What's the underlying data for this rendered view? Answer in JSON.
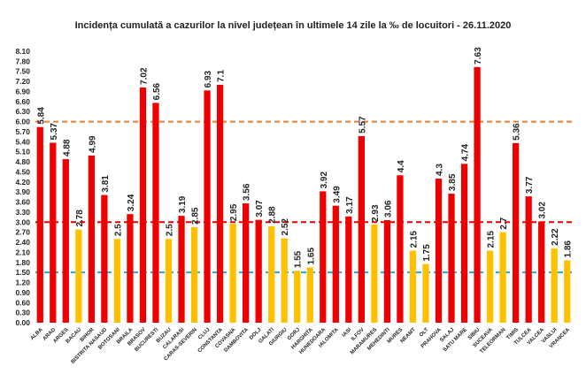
{
  "chart_data": {
    "type": "bar",
    "title": "Incidența cumulată a cazurilor la nivel județean în ultimele 14 zile la ‰ de locuitori - 26.11.2020",
    "xlabel": "",
    "ylabel": "",
    "ylim": [
      0,
      8.1
    ],
    "ytick_step": 0.3,
    "grid": false,
    "legend": "none",
    "categories": [
      "ALBA",
      "ARAD",
      "ARGES",
      "BACAU",
      "BIHOR",
      "BISTRITA NASAUD",
      "BOTOSANI",
      "BRAILA",
      "BRASOV",
      "BUCURESTI",
      "BUZAU",
      "CALARASI",
      "CARAS-SEVERIN",
      "CLUJ",
      "CONSTANTA",
      "COVASNA",
      "DAMBOVITA",
      "DOLJ",
      "GALATI",
      "GIURGIU",
      "GORJ",
      "HARGHITA",
      "HUNEDOARA",
      "IALOMITA",
      "IASI",
      "ILFOV",
      "MARAMURES",
      "MEHEDINTI",
      "MURES",
      "NEAMT",
      "OLT",
      "PRAHOVA",
      "SALAJ",
      "SATU MARE",
      "SIBIU",
      "SUCEAVA",
      "TELEORMAN",
      "TIMIS",
      "TULCEA",
      "VALCEA",
      "VASLUI",
      "VRANCEA"
    ],
    "values": [
      5.84,
      5.37,
      4.88,
      2.78,
      4.99,
      3.81,
      2.5,
      3.24,
      7.02,
      6.56,
      2.5,
      3.19,
      2.85,
      6.93,
      7.1,
      2.95,
      3.56,
      3.07,
      2.88,
      2.52,
      1.55,
      1.65,
      3.92,
      3.49,
      3.17,
      5.57,
      2.93,
      3.06,
      4.4,
      2.15,
      1.75,
      4.3,
      3.85,
      4.74,
      7.63,
      2.15,
      2.7,
      5.36,
      3.77,
      3.02,
      2.22,
      1.86
    ],
    "labels": [
      "5.84",
      "5.37",
      "4.88",
      "2.78",
      "4.99",
      "3.81",
      "2.5",
      "3.24",
      "7.02",
      "6.56",
      "2.5",
      "3.19",
      "2.85",
      "6.93",
      "7.1",
      "2.95",
      "3.56",
      "3.07",
      "2.88",
      "2.52",
      "1.55",
      "1.65",
      "3.92",
      "3.49",
      "3.17",
      "5.57",
      "2.93",
      "3.06",
      "4.4",
      "2.15",
      "1.75",
      "4.3",
      "3.85",
      "4.74",
      "7.63",
      "2.15",
      "2.7",
      "5.36",
      "3.77",
      "3.02",
      "2.22",
      "1.86"
    ],
    "threshold_lines": [
      {
        "value": 6.0,
        "color": "#ed7d31"
      },
      {
        "value": 3.0,
        "color": "#e00000"
      },
      {
        "value": 1.5,
        "color": "#1ea7e1"
      }
    ],
    "colors": {
      "high": "#ee0000",
      "mid": "#ffc000",
      "cutoff_high": 3.0,
      "cutoff_mid": 1.5
    }
  }
}
